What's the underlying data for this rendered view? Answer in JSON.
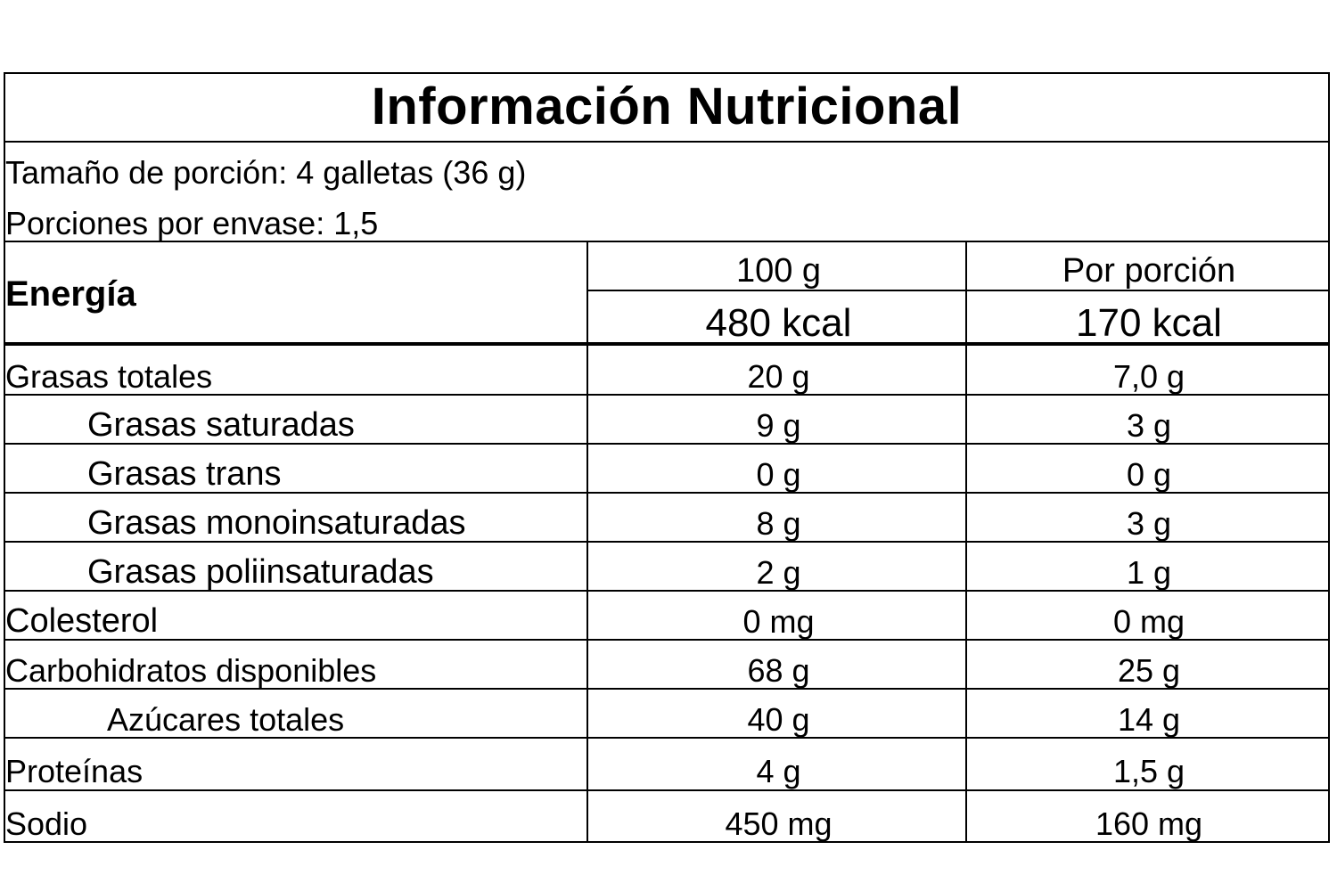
{
  "title": "Información Nutricional",
  "serving_size": "Tamaño de porción: 4 galletas (36 g)",
  "servings_per_container": "Porciones por envase: 1,5",
  "energy": {
    "label": "Energía",
    "col_100g": "100 g",
    "col_portion": "Por porción",
    "value_100g": "480 kcal",
    "value_portion": "170 kcal"
  },
  "rows": [
    {
      "name": "Grasas totales",
      "per_100g": "20 g",
      "per_portion": "7,0 g"
    },
    {
      "name": "Grasas saturadas",
      "per_100g": "9 g",
      "per_portion": "3 g"
    },
    {
      "name": "Grasas trans",
      "per_100g": "0 g",
      "per_portion": "0 g"
    },
    {
      "name": "Grasas monoinsaturadas",
      "per_100g": "8 g",
      "per_portion": "3 g"
    },
    {
      "name": "Grasas poliinsaturadas",
      "per_100g": "2 g",
      "per_portion": "1 g"
    },
    {
      "name": "Colesterol",
      "per_100g": "0 mg",
      "per_portion": "0 mg"
    },
    {
      "name": "Carbohidratos disponibles",
      "per_100g": "68 g",
      "per_portion": "25 g"
    },
    {
      "name": "Azúcares totales",
      "per_100g": "40 g",
      "per_portion": "14 g"
    },
    {
      "name": "Proteínas",
      "per_100g": "4 g",
      "per_portion": "1,5 g"
    },
    {
      "name": "Sodio",
      "per_100g": "450 mg",
      "per_portion": "160 mg"
    }
  ]
}
